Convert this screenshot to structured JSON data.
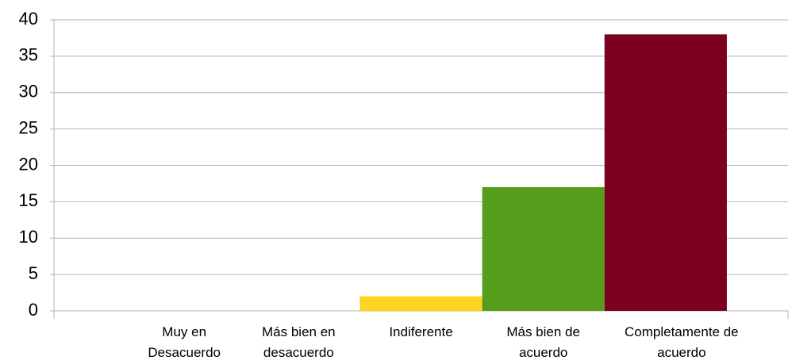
{
  "chart_data": {
    "type": "bar",
    "categories": [
      "Muy en Desacuerdo",
      "Más bien en desacuerdo",
      "Indiferente",
      "Más bien de acuerdo",
      "Completamente de acuerdo"
    ],
    "values": [
      0,
      0,
      2,
      17,
      38
    ],
    "colors": [
      "#004586",
      "#ff420e",
      "#ffd320",
      "#579d1c",
      "#7e0021"
    ],
    "ylim": [
      0,
      40
    ],
    "yticks": [
      0,
      5,
      10,
      15,
      20,
      25,
      30,
      35,
      40
    ],
    "grid": true
  }
}
